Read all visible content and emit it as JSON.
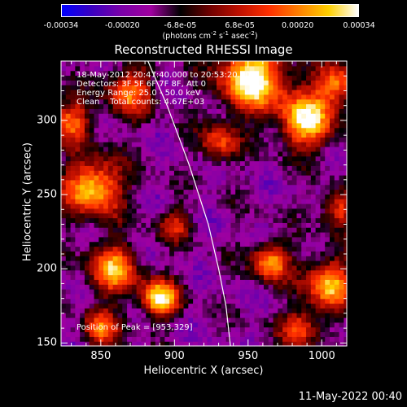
{
  "colorbar": {
    "ticks": [
      "-0.00034",
      "-0.00020",
      "-6.8e-05",
      "6.8e-05",
      "0.00020",
      "0.00034"
    ],
    "tick_values": [
      -0.00034,
      -0.0002,
      -6.8e-05,
      6.8e-05,
      0.0002,
      0.00034
    ],
    "range": [
      -0.00034,
      0.00034
    ],
    "unit_parts": [
      "(photons cm",
      "-2",
      " s",
      "-1",
      " asec",
      "-2",
      ")"
    ],
    "stops": [
      "#0000ff",
      "#3a00c0",
      "#7a00a8",
      "#a000a0",
      "#000000",
      "#700000",
      "#c01000",
      "#ff3000",
      "#ff8000",
      "#ffd000",
      "#ffffff"
    ]
  },
  "chart_data": {
    "type": "heatmap",
    "title": "Reconstructed RHESSI Image",
    "xlabel": "Heliocentric X (arcsec)",
    "ylabel": "Heliocentric Y (arcsec)",
    "xlim": [
      823,
      1017
    ],
    "ylim": [
      148,
      340
    ],
    "xticks": [
      850,
      900,
      950,
      1000
    ],
    "yticks": [
      150,
      200,
      250,
      300
    ],
    "info_lines": [
      "18-May-2012 20:47:40.000 to 20:53:20.000",
      "Detectors: 3F 5F 6F 7F 8F, Att 0",
      "Energy Range: 25.0 - 50.0 keV",
      "Clean    Total counts: 4.67E+03"
    ],
    "peak_text": "Position of Peak = [953,329]",
    "peak_position": [
      953,
      329
    ],
    "limb_points": [
      [
        882,
        340
      ],
      [
        895,
        310
      ],
      [
        910,
        270
      ],
      [
        923,
        230
      ],
      [
        930,
        200
      ],
      [
        935,
        175
      ],
      [
        938,
        148
      ]
    ],
    "bright_sources": [
      {
        "x": 953,
        "y": 329,
        "sigma": 16,
        "amp": 1.0
      },
      {
        "x": 990,
        "y": 300,
        "sigma": 13,
        "amp": 0.9
      },
      {
        "x": 1010,
        "y": 325,
        "sigma": 10,
        "amp": 0.7
      },
      {
        "x": 845,
        "y": 255,
        "sigma": 14,
        "amp": 0.85
      },
      {
        "x": 830,
        "y": 300,
        "sigma": 10,
        "amp": 0.6
      },
      {
        "x": 858,
        "y": 200,
        "sigma": 12,
        "amp": 0.75
      },
      {
        "x": 890,
        "y": 180,
        "sigma": 9,
        "amp": 0.9
      },
      {
        "x": 965,
        "y": 205,
        "sigma": 9,
        "amp": 0.75
      },
      {
        "x": 1005,
        "y": 190,
        "sigma": 12,
        "amp": 0.8
      },
      {
        "x": 1012,
        "y": 240,
        "sigma": 9,
        "amp": 0.55
      },
      {
        "x": 985,
        "y": 160,
        "sigma": 9,
        "amp": 0.6
      },
      {
        "x": 850,
        "y": 160,
        "sigma": 9,
        "amp": 0.6
      },
      {
        "x": 930,
        "y": 285,
        "sigma": 9,
        "amp": 0.55
      },
      {
        "x": 900,
        "y": 230,
        "sigma": 8,
        "amp": 0.45
      },
      {
        "x": 870,
        "y": 320,
        "sigma": 12,
        "amp": 0.6
      }
    ]
  },
  "timestamp": "11-May-2022 00:40"
}
